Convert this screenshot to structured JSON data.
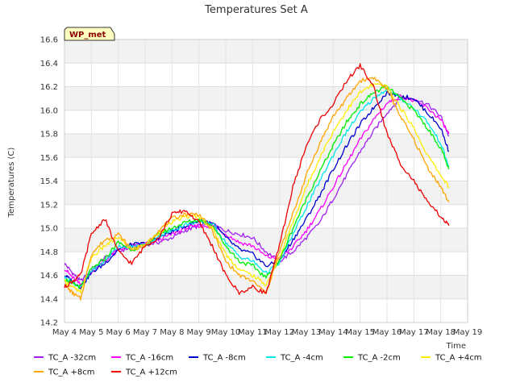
{
  "chart_data": {
    "type": "line",
    "title": "Temperatures Set A",
    "xlabel": "Time",
    "ylabel": "Temperatures (C)",
    "badge": "WP_met",
    "x_ticks": [
      "May 4",
      "May 5",
      "May 6",
      "May 7",
      "May 8",
      "May 9",
      "May 10",
      "May 11",
      "May 12",
      "May 13",
      "May 14",
      "May 15",
      "May 16",
      "May 17",
      "May 18",
      "May 19"
    ],
    "y_ticks": [
      14.2,
      14.4,
      14.6,
      14.8,
      15.0,
      15.2,
      15.4,
      15.6,
      15.8,
      16.0,
      16.2,
      16.4,
      16.6
    ],
    "xlim": [
      0,
      15
    ],
    "ylim": [
      14.2,
      16.6
    ],
    "x_units": "days since May 4",
    "grid": true,
    "legend_position": "bottom",
    "series": [
      {
        "name": "TC_A -32cm",
        "color": "#a020f0",
        "x": [
          0,
          0.3,
          0.6,
          1,
          1.5,
          2,
          2.5,
          3,
          3.5,
          4,
          4.5,
          5,
          5.5,
          6,
          6.5,
          7,
          7.5,
          8,
          8.5,
          9,
          9.5,
          10,
          10.5,
          11,
          11.5,
          12,
          12.5,
          13,
          13.5,
          14,
          14.3
        ],
        "y": [
          14.7,
          14.62,
          14.55,
          14.64,
          14.75,
          14.8,
          14.84,
          14.86,
          14.88,
          14.92,
          14.98,
          15.02,
          15.03,
          14.98,
          14.95,
          14.92,
          14.8,
          14.72,
          14.8,
          14.92,
          15.05,
          15.25,
          15.45,
          15.65,
          15.82,
          15.98,
          16.1,
          16.1,
          16.05,
          15.95,
          15.78
        ]
      },
      {
        "name": "TC_A -16cm",
        "color": "#ff00ff",
        "x": [
          0,
          0.3,
          0.6,
          1,
          1.5,
          2,
          2.5,
          3,
          3.5,
          4,
          4.5,
          5,
          5.5,
          6,
          6.5,
          7,
          7.5,
          8,
          8.5,
          9,
          9.5,
          10,
          10.5,
          11,
          11.5,
          12,
          12.5,
          13,
          13.5,
          14,
          14.3
        ],
        "y": [
          14.66,
          14.58,
          14.52,
          14.63,
          14.72,
          14.82,
          14.85,
          14.87,
          14.9,
          14.95,
          15.0,
          15.02,
          15.02,
          14.95,
          14.88,
          14.85,
          14.76,
          14.74,
          14.84,
          14.98,
          15.15,
          15.35,
          15.55,
          15.75,
          15.92,
          16.06,
          16.12,
          16.08,
          16.02,
          15.92,
          15.8
        ]
      },
      {
        "name": "TC_A -8cm",
        "color": "#0000cd",
        "x": [
          0,
          0.3,
          0.6,
          1,
          1.5,
          2,
          2.5,
          3,
          3.5,
          4,
          4.5,
          5,
          5.5,
          6,
          6.5,
          7,
          7.5,
          8,
          8.5,
          9,
          9.5,
          10,
          10.5,
          11,
          11.5,
          12,
          12.5,
          13,
          13.5,
          14,
          14.3
        ],
        "y": [
          14.6,
          14.55,
          14.5,
          14.62,
          14.7,
          14.82,
          14.86,
          14.87,
          14.92,
          14.97,
          15.02,
          15.06,
          15.05,
          14.92,
          14.82,
          14.78,
          14.68,
          14.72,
          14.9,
          15.08,
          15.28,
          15.5,
          15.7,
          15.88,
          16.02,
          16.15,
          16.12,
          16.1,
          15.98,
          15.85,
          15.65
        ]
      },
      {
        "name": "TC_A -4cm",
        "color": "#00e5ee",
        "x": [
          0,
          0.3,
          0.6,
          1,
          1.5,
          2,
          2.5,
          3,
          3.5,
          4,
          4.5,
          5,
          5.5,
          6,
          6.5,
          7,
          7.5,
          8,
          8.5,
          9,
          9.5,
          10,
          10.5,
          11,
          11.5,
          12,
          12.5,
          13,
          13.5,
          14,
          14.3
        ],
        "y": [
          14.58,
          14.54,
          14.5,
          14.64,
          14.72,
          14.85,
          14.84,
          14.86,
          14.93,
          14.98,
          15.03,
          15.06,
          15.04,
          14.88,
          14.76,
          14.72,
          14.62,
          14.7,
          14.95,
          15.18,
          15.4,
          15.62,
          15.82,
          15.98,
          16.1,
          16.18,
          16.1,
          16.02,
          15.9,
          15.72,
          15.52
        ]
      },
      {
        "name": "TC_A -2cm",
        "color": "#00ee00",
        "x": [
          0,
          0.3,
          0.6,
          1,
          1.5,
          2,
          2.5,
          3,
          3.5,
          4,
          4.5,
          5,
          5.5,
          6,
          6.5,
          7,
          7.5,
          8,
          8.5,
          9,
          9.5,
          10,
          10.5,
          11,
          11.5,
          12,
          12.5,
          13,
          13.5,
          14,
          14.3
        ],
        "y": [
          14.57,
          14.53,
          14.5,
          14.65,
          14.74,
          14.88,
          14.82,
          14.85,
          14.95,
          15.0,
          15.05,
          15.07,
          15.03,
          14.85,
          14.72,
          14.68,
          14.58,
          14.72,
          15.0,
          15.25,
          15.48,
          15.7,
          15.9,
          16.05,
          16.15,
          16.2,
          16.1,
          16.0,
          15.85,
          15.68,
          15.5
        ]
      },
      {
        "name": "TC_A +4cm",
        "color": "#ffee00",
        "x": [
          0,
          0.3,
          0.6,
          1,
          1.5,
          2,
          2.5,
          3,
          3.5,
          4,
          4.5,
          5,
          5.5,
          6,
          6.5,
          7,
          7.5,
          8,
          8.5,
          9,
          9.5,
          10,
          10.5,
          11,
          11.5,
          12,
          12.5,
          13,
          13.5,
          14,
          14.3
        ],
        "y": [
          14.55,
          14.5,
          14.45,
          14.75,
          14.85,
          14.92,
          14.82,
          14.86,
          14.96,
          15.05,
          15.1,
          15.1,
          15.0,
          14.78,
          14.65,
          14.6,
          14.52,
          14.75,
          15.05,
          15.35,
          15.6,
          15.82,
          16.0,
          16.15,
          16.22,
          16.2,
          16.02,
          15.85,
          15.62,
          15.45,
          15.35
        ]
      },
      {
        "name": "TC_A +8cm",
        "color": "#ffa500",
        "x": [
          0,
          0.3,
          0.6,
          1,
          1.5,
          2,
          2.5,
          3,
          3.5,
          4,
          4.5,
          5,
          5.5,
          6,
          6.5,
          7,
          7.5,
          8,
          8.5,
          9,
          9.5,
          10,
          10.5,
          11,
          11.5,
          12,
          12.5,
          13,
          13.5,
          14,
          14.3
        ],
        "y": [
          14.52,
          14.45,
          14.4,
          14.78,
          14.9,
          14.95,
          14.82,
          14.85,
          14.98,
          15.08,
          15.12,
          15.12,
          14.98,
          14.72,
          14.6,
          14.55,
          14.45,
          14.8,
          15.12,
          15.45,
          15.72,
          15.95,
          16.1,
          16.25,
          16.28,
          16.18,
          15.95,
          15.75,
          15.52,
          15.35,
          15.22
        ]
      },
      {
        "name": "TC_A +12cm",
        "color": "#ee0000",
        "x": [
          0,
          0.3,
          0.6,
          1,
          1.5,
          2,
          2.5,
          3,
          3.5,
          4,
          4.5,
          5,
          5.5,
          6,
          6.5,
          7,
          7.5,
          8,
          8.5,
          9,
          9.5,
          10,
          10.5,
          11,
          11.5,
          12,
          12.5,
          13,
          13.5,
          14,
          14.3
        ],
        "y": [
          14.5,
          14.55,
          14.6,
          14.95,
          15.08,
          14.8,
          14.7,
          14.85,
          14.92,
          15.12,
          15.15,
          15.05,
          14.85,
          14.6,
          14.45,
          14.5,
          14.45,
          14.85,
          15.35,
          15.7,
          15.92,
          16.05,
          16.25,
          16.38,
          16.2,
          15.8,
          15.55,
          15.4,
          15.22,
          15.1,
          15.02
        ]
      }
    ]
  }
}
